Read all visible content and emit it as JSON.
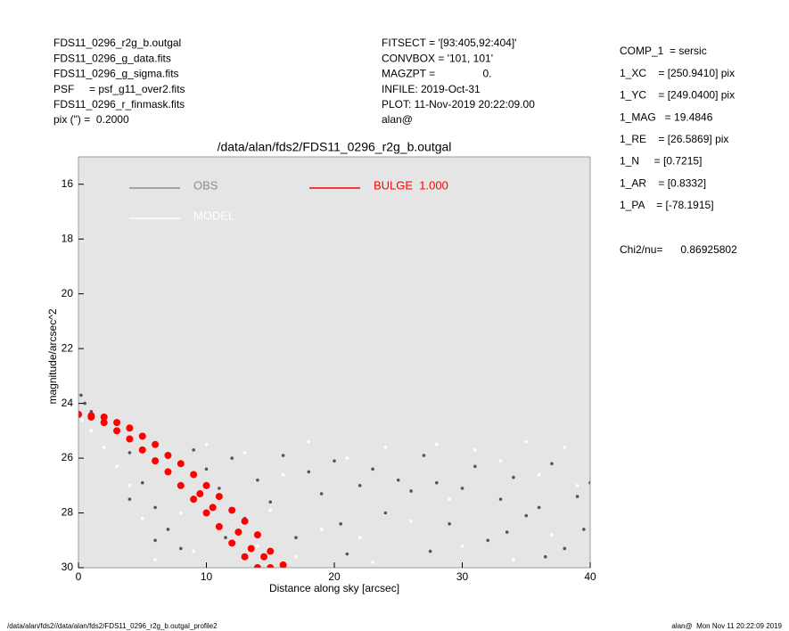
{
  "header_left": [
    "FDS11_0296_r2g_b.outgal",
    "FDS11_0296_g_data.fits",
    "FDS11_0296_g_sigma.fits",
    "PSF     = psf_g11_over2.fits",
    "FDS11_0296_r_finmask.fits",
    "pix (\") =  0.2000"
  ],
  "header_middle": [
    "FITSECT = '[93:405,92:404]'",
    "CONVBOX = '101, 101'",
    "MAGZPT =                0.",
    "INFILE: 2019-Oct-31",
    "PLOT: 11-Nov-2019 20:22:09.00",
    "alan@"
  ],
  "header_right": [
    "COMP_1  = sersic",
    "1_XC    = [250.9410] pix",
    "1_YC    = [249.0400] pix",
    "1_MAG   = 19.4846",
    "1_RE    = [26.5869] pix",
    "1_N     = [0.7215]",
    "1_AR    = [0.8332]",
    "1_PA    = [-78.1915]"
  ],
  "chi2": "Chi2/nu=      0.86925802",
  "footer_left": "/data/alan/fds2//data/alan/fds2/FDS11_0296_r2g_b.outgal_profile2",
  "footer_right": "alan@  Mon Nov 11 20:22:09 2019",
  "chart_data": {
    "type": "scatter",
    "title": "/data/alan/fds2/FDS11_0296_r2g_b.outgal",
    "x_label": "Distance along sky [arcsec]",
    "y_label": "magnitude/arcsec^2",
    "xlim": [
      0,
      40
    ],
    "xticks": [
      0,
      10,
      20,
      30,
      40
    ],
    "ylim": [
      30,
      15
    ],
    "yticks": [
      16,
      18,
      20,
      22,
      24,
      26,
      28,
      30
    ],
    "background": "#e5e5e5",
    "series": [
      {
        "name": "OBS",
        "color": "#555555",
        "legend_color": "#8c8c8c",
        "x": [
          0.2,
          0.5,
          1,
          2,
          3,
          4,
          5,
          6,
          7,
          8,
          4,
          6,
          9,
          10,
          11,
          12,
          13,
          14,
          15,
          16,
          17,
          18,
          19,
          20,
          21,
          22,
          23,
          24,
          25,
          26,
          27,
          28,
          29,
          30,
          31,
          32,
          33,
          34,
          35,
          36,
          37,
          38,
          39,
          39.5,
          40,
          36.5,
          33.5,
          27.5,
          20.5,
          11.5
        ],
        "values": [
          23.7,
          24.0,
          24.3,
          24.6,
          25.0,
          25.8,
          26.9,
          27.8,
          28.6,
          29.3,
          27.5,
          29.0,
          25.7,
          26.4,
          27.1,
          26.0,
          28.2,
          26.8,
          27.6,
          25.9,
          28.9,
          26.5,
          27.3,
          26.1,
          29.5,
          27.0,
          26.4,
          28.0,
          26.8,
          27.2,
          25.9,
          26.9,
          28.4,
          27.1,
          26.3,
          29.0,
          27.5,
          26.7,
          28.1,
          27.8,
          26.2,
          29.3,
          27.4,
          28.6,
          26.9,
          29.6,
          28.7,
          29.4,
          28.4,
          28.9
        ]
      },
      {
        "name": "MODEL",
        "color": "#ffffff",
        "legend_color": "#ffffff",
        "x": [
          0.3,
          1,
          2,
          3,
          4,
          5,
          6,
          7,
          8,
          9,
          10,
          12,
          14,
          16,
          18,
          19,
          21,
          23,
          24,
          26,
          28,
          30,
          31,
          33,
          34,
          35,
          37,
          38,
          39,
          40,
          15,
          22,
          29,
          36,
          17,
          13
        ],
        "values": [
          24.6,
          25.0,
          25.6,
          26.3,
          27.0,
          28.2,
          29.7,
          26.5,
          28.0,
          29.4,
          25.5,
          27.8,
          29.2,
          26.6,
          25.4,
          28.6,
          26.0,
          29.8,
          25.6,
          28.3,
          25.5,
          29.2,
          25.7,
          26.1,
          29.7,
          25.4,
          28.8,
          25.6,
          27.0,
          29.9,
          27.9,
          28.9,
          27.5,
          26.6,
          29.6,
          25.8
        ]
      },
      {
        "name": "BULGE  1.000",
        "color": "#ff0000",
        "legend_color": "#ff0000",
        "x": [
          0,
          1,
          1,
          2,
          2,
          3,
          3,
          4,
          4,
          5,
          5,
          6,
          6,
          7,
          7,
          8,
          8,
          9,
          9,
          10,
          10,
          11,
          11,
          12,
          12,
          13,
          13,
          14,
          14,
          15,
          15,
          16,
          10.5,
          12.5,
          13.5,
          14.5,
          9.5
        ],
        "values": [
          24.4,
          24.45,
          24.5,
          24.5,
          24.7,
          24.7,
          25.0,
          24.9,
          25.3,
          25.2,
          25.7,
          25.5,
          26.1,
          25.9,
          26.5,
          26.2,
          27.0,
          26.6,
          27.5,
          27.0,
          28.0,
          27.4,
          28.5,
          27.9,
          29.1,
          28.3,
          29.6,
          28.8,
          30.0,
          29.4,
          30.0,
          29.9,
          27.8,
          28.7,
          29.3,
          29.6,
          27.3
        ]
      }
    ]
  }
}
